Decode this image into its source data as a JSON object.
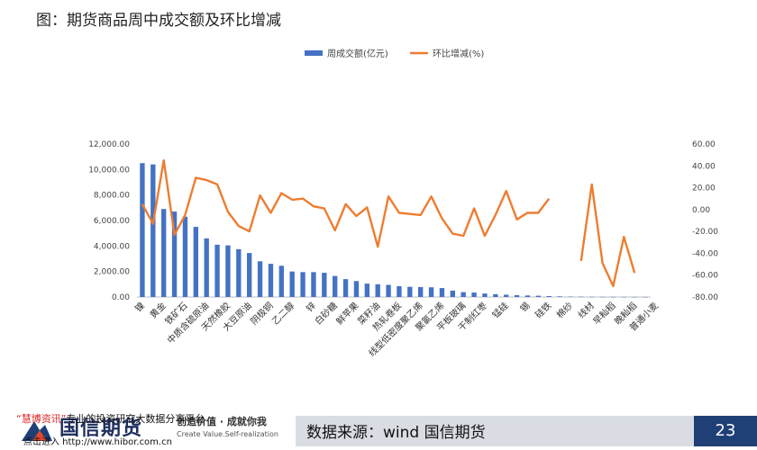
{
  "title": "图：期货商品周中成交额及环比增减",
  "footer": {
    "source": "数据来源：wind 国信期货",
    "page_number": "23",
    "logo_text": "国信期货",
    "slogan_cn": "创造价值 · 成就你我",
    "slogan_en": "Create Value.Self-realization",
    "overlay_line1_highlight": "“慧博资讯”",
    "overlay_line1_rest": "专业的投资研究大数据分享平台",
    "overlay_line2": "点击进入 http://www.hibor.com.cn"
  },
  "colors": {
    "bar": "#4472c4",
    "line": "#ed7d31"
  },
  "chart_data": {
    "type": "bar+line",
    "legend": [
      "周成交额(亿元)",
      "环比增减(%)"
    ],
    "legend_position": "top-center",
    "left_axis_ticks": [
      "12,000.00",
      "10,000.00",
      "8,000.00",
      "6,000.00",
      "4,000.00",
      "2,000.00",
      "0.00"
    ],
    "right_axis_ticks": [
      "60.00",
      "40.00",
      "20.00",
      "0.00",
      "-20.00",
      "-40.00",
      "-60.00",
      "-80.00"
    ],
    "y_left_range": [
      0,
      12000
    ],
    "y_right_range": [
      -80,
      60
    ],
    "x_labels_shown": [
      "镍",
      "黄金",
      "铁矿石",
      "中质含硫原油",
      "天然橡胶",
      "大豆原油",
      "阴极铜",
      "乙二醇",
      "锌",
      "白砂糖",
      "鲜苹果",
      "菜籽油",
      "热轧卷板",
      "线型低密度聚乙烯",
      "聚氯乙烯",
      "平板玻璃",
      "干制红枣",
      "锰硅",
      "锡",
      "硅铁",
      "棉纱",
      "线材",
      "早籼稻",
      "晚籼稻",
      "普通小麦"
    ],
    "series": [
      {
        "name": "周成交额(亿元)",
        "kind": "bar",
        "values": [
          10500,
          10400,
          6900,
          6700,
          6300,
          5500,
          4600,
          4100,
          4050,
          3750,
          3450,
          2800,
          2600,
          2450,
          2000,
          1950,
          1950,
          1900,
          1650,
          1400,
          1250,
          1050,
          1000,
          950,
          850,
          800,
          780,
          760,
          700,
          500,
          380,
          350,
          270,
          220,
          180,
          140,
          120,
          100,
          70,
          50,
          30,
          25,
          15,
          12,
          10,
          8,
          5,
          3
        ]
      },
      {
        "name": "环比增减(%)",
        "kind": "line",
        "values": [
          5,
          -13,
          45,
          -23,
          -5,
          29,
          27,
          23,
          -2,
          -15,
          -20,
          13,
          -3,
          15,
          9,
          10,
          3,
          1,
          -19,
          5,
          -6,
          2,
          -34,
          12,
          -3,
          -4,
          -5,
          12,
          -8,
          -22,
          -24,
          1,
          -24,
          -5,
          17,
          -9,
          -3,
          -3,
          10,
          null,
          null,
          -47,
          23,
          -49,
          -70,
          -25,
          -58,
          null
        ]
      }
    ]
  }
}
